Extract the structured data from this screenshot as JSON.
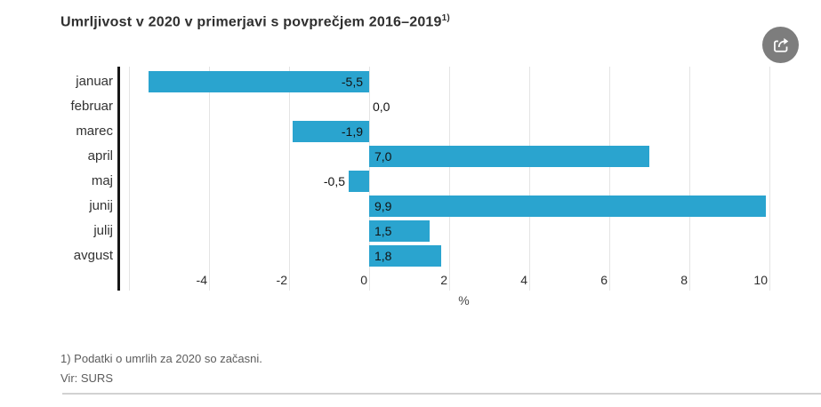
{
  "title": {
    "text": "Umrljivost v 2020 v primerjavi s povprečjem 2016–2019",
    "superscript": "1)"
  },
  "share": {
    "icon": "share-export-icon"
  },
  "chart_data": {
    "type": "bar",
    "orientation": "horizontal",
    "title": "Umrljivost v 2020 v primerjavi s povprečjem 2016–2019 1)",
    "categories": [
      "januar",
      "februar",
      "marec",
      "april",
      "maj",
      "junij",
      "julij",
      "avgust"
    ],
    "values": [
      -5.5,
      0,
      -1.9,
      7,
      -0.5,
      9.9,
      1.5,
      1.8
    ],
    "value_labels": [
      "-5,5",
      "0,0",
      "-1,9",
      "7,0",
      "-0,5",
      "9,9",
      "1,5",
      "1,8"
    ],
    "xlabel": "%",
    "x_ticks": [
      -4,
      -2,
      0,
      2,
      4,
      6,
      8,
      10
    ],
    "x_tick_labels": [
      "-4",
      "-2",
      "0",
      "2",
      "4",
      "6",
      "8",
      "10"
    ],
    "x_gridlines": [
      -6,
      -4,
      -2,
      0,
      2,
      4,
      6,
      8,
      10
    ],
    "xlim": [
      -6.3,
      11.3
    ],
    "grid": true,
    "legend": false,
    "bar_color": "#2AA4CF"
  },
  "colors": {
    "bar": "#2AA4CF",
    "axis_line": "#161616",
    "gridline": "#e4e4e4",
    "title_text": "#2f2f2f",
    "category_text": "#333333",
    "value_text": "#121212",
    "footer_text": "#5c5c5c",
    "share_bg": "#7d7d7d",
    "divider": "#d2d2d2"
  },
  "footnotes": [
    "1) Podatki o umrlih za 2020 so začasni.",
    "Vir: SURS"
  ]
}
